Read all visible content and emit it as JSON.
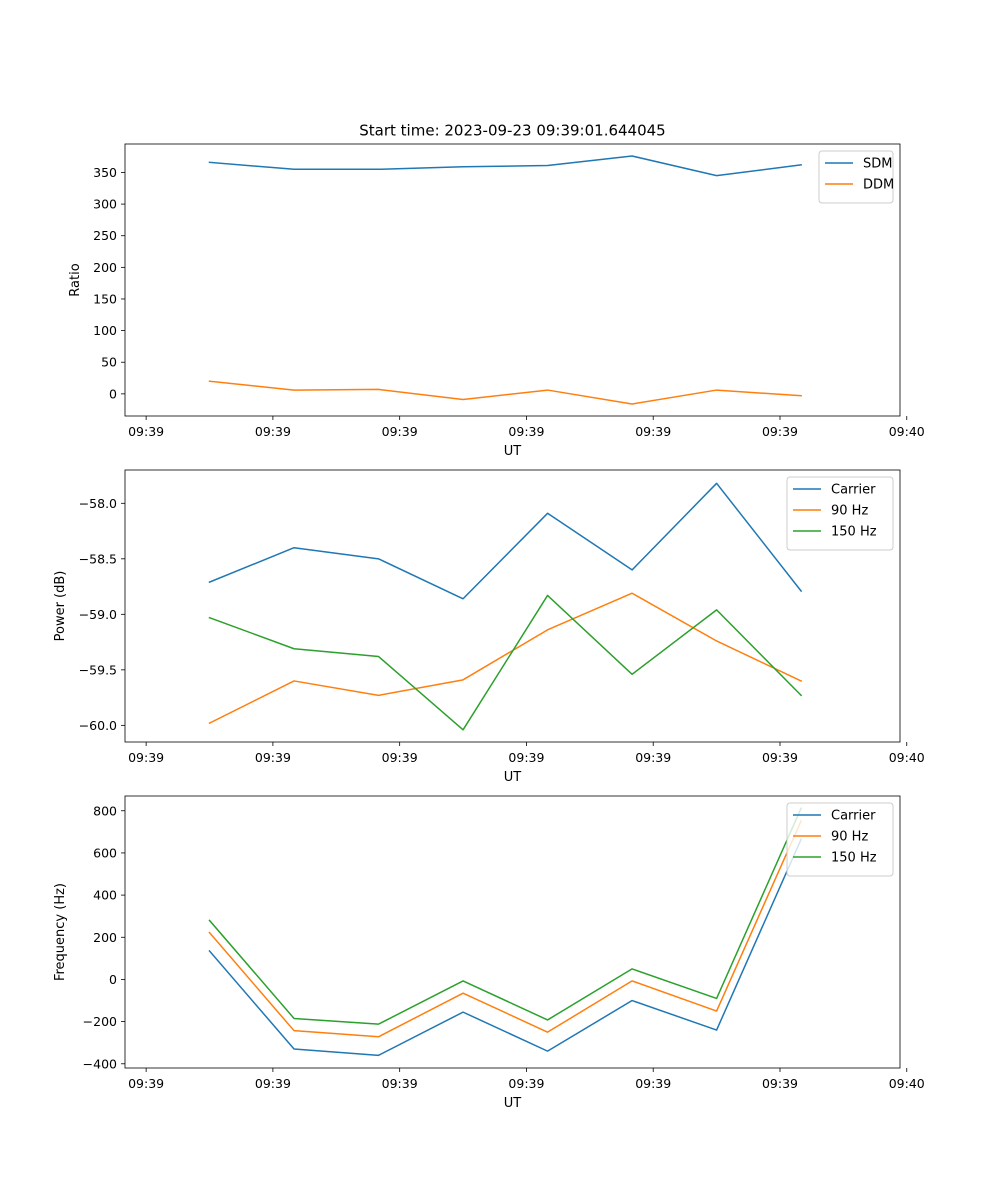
{
  "figure": {
    "title": "Start time: 2023-09-23 09:39:01.644045"
  },
  "chart_data": [
    {
      "type": "line",
      "title": "Start time: 2023-09-23 09:39:01.644045",
      "xlabel": "UT",
      "ylabel": "Ratio",
      "xlim": [
        0,
        9.17
      ],
      "ylim": [
        -35,
        395
      ],
      "x": [
        1,
        2,
        3,
        4,
        5,
        6,
        7,
        8
      ],
      "xticks": [
        0.25,
        1.75,
        3.25,
        4.75,
        6.25,
        7.75,
        9.25
      ],
      "xtick_labels": [
        "09:39",
        "09:39",
        "09:39",
        "09:39",
        "09:39",
        "09:39",
        "09:40"
      ],
      "yticks": [
        0,
        50,
        100,
        150,
        200,
        250,
        300,
        350
      ],
      "ytick_labels": [
        "0",
        "50",
        "100",
        "150",
        "200",
        "250",
        "300",
        "350"
      ],
      "legend": "top-right",
      "series": [
        {
          "name": "SDM",
          "color": "#1f77b4",
          "values": [
            366,
            355,
            355,
            359,
            361,
            376,
            345,
            362
          ]
        },
        {
          "name": "DDM",
          "color": "#ff7f0e",
          "values": [
            20,
            6,
            7,
            -9,
            6,
            -16,
            6,
            -3
          ]
        }
      ]
    },
    {
      "type": "line",
      "xlabel": "UT",
      "ylabel": "Power (dB)",
      "xlim": [
        0,
        9.17
      ],
      "ylim": [
        -60.15,
        -57.7
      ],
      "x": [
        1,
        2,
        3,
        4,
        5,
        6,
        7,
        8
      ],
      "xticks": [
        0.25,
        1.75,
        3.25,
        4.75,
        6.25,
        7.75,
        9.25
      ],
      "xtick_labels": [
        "09:39",
        "09:39",
        "09:39",
        "09:39",
        "09:39",
        "09:39",
        "09:40"
      ],
      "yticks": [
        -60.0,
        -59.5,
        -59.0,
        -58.5,
        -58.0
      ],
      "ytick_labels": [
        "−60.0",
        "−59.5",
        "−59.0",
        "−58.5",
        "−58.0"
      ],
      "legend": "top-right",
      "series": [
        {
          "name": "Carrier",
          "color": "#1f77b4",
          "values": [
            -58.71,
            -58.4,
            -58.5,
            -58.86,
            -58.09,
            -58.6,
            -57.82,
            -58.79
          ]
        },
        {
          "name": "90 Hz",
          "color": "#ff7f0e",
          "values": [
            -59.98,
            -59.6,
            -59.73,
            -59.59,
            -59.14,
            -58.81,
            -59.24,
            -59.6
          ]
        },
        {
          "name": "150 Hz",
          "color": "#2ca02c",
          "values": [
            -59.03,
            -59.31,
            -59.38,
            -60.04,
            -58.83,
            -59.54,
            -58.96,
            -59.73
          ]
        }
      ]
    },
    {
      "type": "line",
      "xlabel": "UT",
      "ylabel": "Frequency (Hz)",
      "xlim": [
        0,
        9.17
      ],
      "ylim": [
        -420,
        870
      ],
      "x": [
        1,
        2,
        3,
        4,
        5,
        6,
        7,
        8
      ],
      "xticks": [
        0.25,
        1.75,
        3.25,
        4.75,
        6.25,
        7.75,
        9.25
      ],
      "xtick_labels": [
        "09:39",
        "09:39",
        "09:39",
        "09:39",
        "09:39",
        "09:39",
        "09:40"
      ],
      "yticks": [
        -400,
        -200,
        0,
        200,
        400,
        600,
        800
      ],
      "ytick_labels": [
        "−400",
        "−200",
        "0",
        "200",
        "400",
        "600",
        "800"
      ],
      "legend": "top-right",
      "series": [
        {
          "name": "Carrier",
          "color": "#1f77b4",
          "values": [
            135,
            -330,
            -360,
            -155,
            -340,
            -100,
            -240,
            665
          ]
        },
        {
          "name": "90 Hz",
          "color": "#ff7f0e",
          "values": [
            222,
            -243,
            -272,
            -65,
            -250,
            -7,
            -150,
            752
          ]
        },
        {
          "name": "150 Hz",
          "color": "#2ca02c",
          "values": [
            280,
            -185,
            -212,
            -7,
            -192,
            50,
            -90,
            812
          ]
        }
      ]
    }
  ]
}
